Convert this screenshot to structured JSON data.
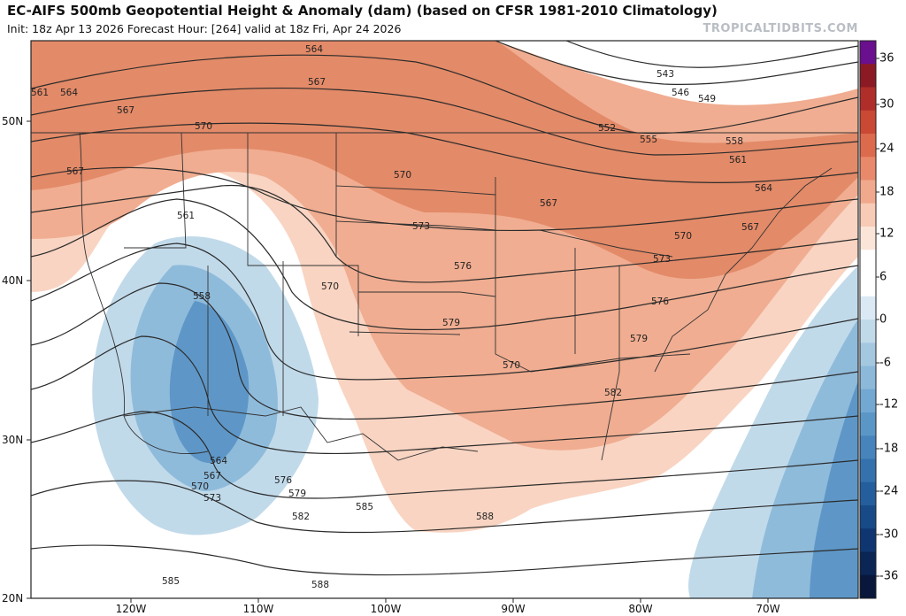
{
  "header": {
    "title": "EC-AIFS 500mb Geopotential Height & Anomaly (dam) (based on CFSR 1981-2010 Climatology)",
    "subtitle": "Init: 18z Apr 13 2026   Forecast Hour: [264]   valid at 18z Fri, Apr 24 2026",
    "brand": "TROPICALTIDBITS.COM"
  },
  "map": {
    "lat_labels": [
      "50N",
      "40N",
      "30N",
      "20N"
    ],
    "lon_labels": [
      "120W",
      "110W",
      "100W",
      "90W",
      "80W",
      "70W"
    ],
    "contour_labels": [
      "561",
      "564",
      "567",
      "564",
      "567",
      "570",
      "567",
      "561",
      "558",
      "570",
      "570",
      "573",
      "576",
      "579",
      "570",
      "567",
      "543",
      "546",
      "549",
      "552",
      "555",
      "558",
      "561",
      "564",
      "567",
      "570",
      "573",
      "576",
      "579",
      "582",
      "564",
      "567",
      "570",
      "573",
      "576",
      "579",
      "582",
      "585",
      "588",
      "588",
      "585"
    ],
    "colors": {
      "positive_strong": "#e38a68",
      "positive_mid": "#f0ad91",
      "positive_light": "#f9d4c2",
      "negative_light": "#c1daea",
      "negative_mid": "#8fbbdb",
      "negative_strong": "#5e97c7",
      "contour": "#2b2b2b",
      "state_border": "#333333"
    }
  },
  "colorbar": {
    "ticks": [
      "36",
      "30",
      "24",
      "18",
      "12",
      "6",
      "0",
      "-6",
      "-12",
      "-18",
      "-24",
      "-30",
      "-36"
    ],
    "colors": [
      "#6a0f8e",
      "#8b1a24",
      "#b02e2a",
      "#c94934",
      "#dc6a4c",
      "#e8896b",
      "#f1a98d",
      "#f8cbb6",
      "#fbe5d9",
      "#ffffff",
      "#ffffff",
      "#dbe9f4",
      "#c1daea",
      "#a5c8e1",
      "#8cb9d9",
      "#72a8d1",
      "#5b97c6",
      "#4684bb",
      "#3572ad",
      "#255e9c",
      "#184a88",
      "#0f3670",
      "#0b2555",
      "#08173b"
    ]
  }
}
